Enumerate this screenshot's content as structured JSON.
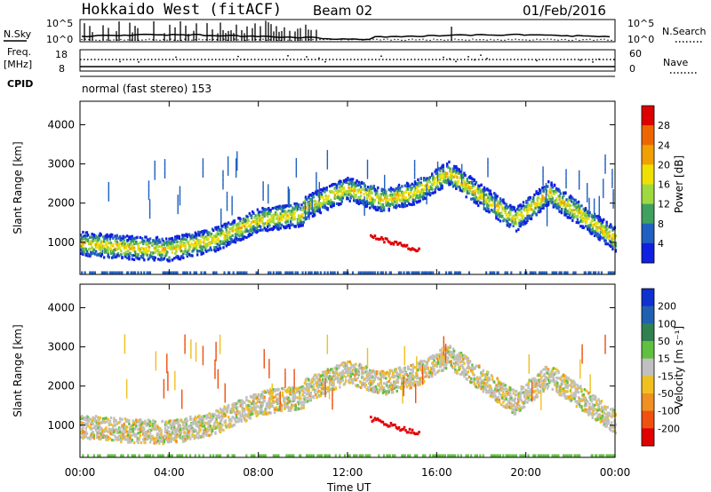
{
  "header": {
    "station": "Hokkaido West (fitACF)",
    "beam": "Beam 02",
    "date": "01/Feb/2016"
  },
  "panels": {
    "nsky": {
      "label": "N.Sky",
      "left_ticks": [
        "10^5",
        "10^0"
      ],
      "right_ticks": [
        "10^5",
        "10^0"
      ],
      "right_label": "N.Search"
    },
    "freq": {
      "label_top": "Freq.",
      "label_unit": "[MHz]",
      "left_ticks": [
        "18",
        "8"
      ],
      "right_ticks": [
        "60",
        "0"
      ],
      "right_label": "Nave"
    },
    "cpid": {
      "label": "CPID",
      "text": "normal (fast stereo) 153"
    }
  },
  "chart_data": [
    {
      "type": "heatmap",
      "title": "",
      "xlabel": "",
      "ylabel": "Slant Range [km]",
      "x_ticks": [
        "00:00",
        "04:00",
        "08:00",
        "12:00",
        "16:00",
        "20:00",
        "00:00"
      ],
      "xlim": [
        0,
        24
      ],
      "ylim": [
        180,
        4600
      ],
      "y_ticks": [
        1000,
        2000,
        3000,
        4000
      ],
      "colorbar": {
        "label": "Power [dB]",
        "ticks": [
          "28",
          "24",
          "20",
          "16",
          "12",
          "8",
          "4"
        ],
        "colors": [
          "#dd0000",
          "#ee6600",
          "#f0a000",
          "#f0e000",
          "#a0d840",
          "#40a060",
          "#2060c0",
          "#1020e0"
        ]
      },
      "scatter_bands": [
        {
          "t": [
            0.0,
            2.0,
            4.0,
            6.0,
            8.0,
            10.0
          ],
          "r": [
            1000,
            900,
            850,
            1100,
            1600,
            1750
          ]
        },
        {
          "t": [
            10.0,
            12.0,
            13.5,
            15.0,
            16.5,
            18.0,
            19.5,
            21.0,
            22.5,
            24.0
          ],
          "r": [
            1900,
            2400,
            2100,
            2300,
            2800,
            2200,
            1600,
            2300,
            1700,
            1100
          ]
        }
      ]
    },
    {
      "type": "heatmap",
      "title": "",
      "xlabel": "Time UT",
      "ylabel": "Slant Range [km]",
      "x_ticks": [
        "00:00",
        "04:00",
        "08:00",
        "12:00",
        "16:00",
        "20:00",
        "00:00"
      ],
      "xlim": [
        0,
        24
      ],
      "ylim": [
        180,
        4600
      ],
      "y_ticks": [
        1000,
        2000,
        3000,
        4000
      ],
      "colorbar": {
        "label": "Velocity [m s⁻¹]",
        "ticks": [
          "200",
          "100",
          "50",
          "15",
          "-15",
          "-50",
          "-100",
          "-200"
        ],
        "colors": [
          "#1030d0",
          "#2060b0",
          "#308050",
          "#60c040",
          "#c0c0c0",
          "#f0c020",
          "#f09020",
          "#f05010",
          "#e00000"
        ]
      }
    }
  ]
}
